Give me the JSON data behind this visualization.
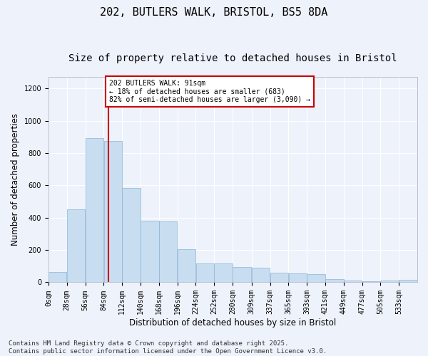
{
  "title": "202, BUTLERS WALK, BRISTOL, BS5 8DA",
  "subtitle": "Size of property relative to detached houses in Bristol",
  "xlabel": "Distribution of detached houses by size in Bristol",
  "ylabel": "Number of detached properties",
  "bar_color": "#c9ddf0",
  "bar_edge_color": "#8ab4d8",
  "background_color": "#eef2fa",
  "grid_color": "#ffffff",
  "property_line_x": 91,
  "property_line_color": "#cc0000",
  "annotation_text": "202 BUTLERS WALK: 91sqm\n← 18% of detached houses are smaller (683)\n82% of semi-detached houses are larger (3,090) →",
  "annotation_box_color": "#cc0000",
  "bin_edges": [
    0,
    28,
    56,
    84,
    112,
    140,
    168,
    196,
    224,
    252,
    280,
    309,
    337,
    365,
    393,
    421,
    449,
    477,
    505,
    533,
    561
  ],
  "bar_heights": [
    65,
    450,
    890,
    875,
    585,
    380,
    375,
    205,
    115,
    115,
    95,
    90,
    60,
    55,
    50,
    18,
    10,
    5,
    12,
    15
  ],
  "ylim": [
    0,
    1270
  ],
  "yticks": [
    0,
    200,
    400,
    600,
    800,
    1000,
    1200
  ],
  "footer_text": "Contains HM Land Registry data © Crown copyright and database right 2025.\nContains public sector information licensed under the Open Government Licence v3.0.",
  "title_fontsize": 11,
  "subtitle_fontsize": 10,
  "tick_fontsize": 7,
  "label_fontsize": 8.5,
  "footer_fontsize": 6.5
}
